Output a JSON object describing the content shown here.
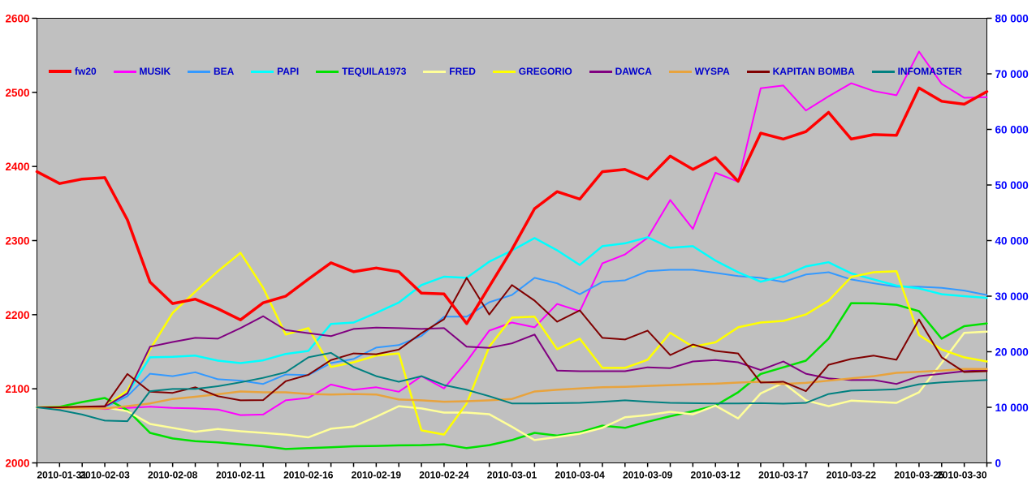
{
  "page": {
    "background": "#FFFFFF"
  },
  "chart_data": {
    "type": "line",
    "title": "",
    "plot_bg": "#C0C0C0",
    "frame_color": "#000000",
    "legend_position": "top-inside",
    "left_axis": {
      "color": "#FF0000",
      "min": 2000,
      "max": 2600,
      "step": 100,
      "labels": [
        "2000",
        "2100",
        "2200",
        "2300",
        "2400",
        "2500",
        "2600"
      ]
    },
    "right_axis": {
      "color": "#0000FF",
      "min": 0,
      "max": 80000,
      "step": 10000,
      "labels": [
        "0",
        "10 000",
        "20 000",
        "30 000",
        "40 000",
        "50 000",
        "60 000",
        "70 000",
        "80 000"
      ]
    },
    "x_axis": {
      "color": "#000000",
      "label_every": 3,
      "shown_labels": [
        "2010-01-31",
        "2010-02-03",
        "2010-02-08",
        "2010-02-11",
        "2010-02-16",
        "2010-02-19",
        "2010-02-24",
        "2010-03-01",
        "2010-03-04",
        "2010-03-09",
        "2010-03-12",
        "2010-03-17",
        "2010-03-22",
        "2010-03-25",
        "2010-03-30"
      ]
    },
    "x": [
      "2010-01-31",
      "2010-02-01",
      "2010-02-02",
      "2010-02-03",
      "2010-02-04",
      "2010-02-05",
      "2010-02-08",
      "2010-02-09",
      "2010-02-10",
      "2010-02-11",
      "2010-02-12",
      "2010-02-15",
      "2010-02-16",
      "2010-02-17",
      "2010-02-18",
      "2010-02-19",
      "2010-02-22",
      "2010-02-23",
      "2010-02-24",
      "2010-02-25",
      "2010-02-26",
      "2010-03-01",
      "2010-03-02",
      "2010-03-03",
      "2010-03-04",
      "2010-03-05",
      "2010-03-08",
      "2010-03-09",
      "2010-03-10",
      "2010-03-11",
      "2010-03-12",
      "2010-03-15",
      "2010-03-16",
      "2010-03-17",
      "2010-03-18",
      "2010-03-19",
      "2010-03-22",
      "2010-03-23",
      "2010-03-24",
      "2010-03-25",
      "2010-03-26",
      "2010-03-29",
      "2010-03-30"
    ],
    "series": [
      {
        "name": "fw20",
        "color": "#FF0000",
        "width": 3.5,
        "axis": "left",
        "values": [
          2393,
          2377,
          2383,
          2385,
          2328,
          2244,
          2215,
          2221,
          2208,
          2193,
          2216,
          2225,
          2248,
          2270,
          2258,
          2263,
          2258,
          2229,
          2228,
          2188,
          2238,
          2288,
          2343,
          2366,
          2356,
          2393,
          2396,
          2383,
          2414,
          2396,
          2412,
          2380,
          2445,
          2437,
          2447,
          2473,
          2437,
          2443,
          2442,
          2506,
          2488,
          2484,
          2501
        ]
      },
      {
        "name": "MUSIK",
        "color": "#FF00FF",
        "width": 2,
        "axis": "right",
        "values": [
          10000,
          9800,
          10000,
          9700,
          9900,
          10100,
          9900,
          9800,
          9600,
          8600,
          8700,
          11250,
          11700,
          14100,
          13150,
          13600,
          12800,
          15600,
          13400,
          18250,
          23800,
          25250,
          24400,
          28600,
          27300,
          35900,
          37500,
          40500,
          47300,
          42100,
          52200,
          50600,
          67400,
          67900,
          63400,
          65950,
          68300,
          66900,
          66150,
          74000,
          68200,
          65700,
          65800
        ]
      },
      {
        "name": "BEA",
        "color": "#3399FF",
        "width": 2,
        "axis": "right",
        "values": [
          10000,
          10000,
          10000,
          10000,
          12000,
          16050,
          15600,
          16300,
          15050,
          14800,
          14200,
          15900,
          15800,
          17950,
          18700,
          20750,
          21200,
          22850,
          26300,
          26300,
          28900,
          30200,
          33300,
          32300,
          30350,
          32550,
          32850,
          34500,
          34750,
          34750,
          34200,
          33600,
          33300,
          32550,
          33900,
          34300,
          33000,
          32300,
          31700,
          31700,
          31500,
          31000,
          30200
        ]
      },
      {
        "name": "PAPI",
        "color": "#00FFFF",
        "width": 2.5,
        "axis": "right",
        "values": [
          10000,
          10000,
          10000,
          10000,
          12500,
          19000,
          19100,
          19300,
          18400,
          17950,
          18450,
          19600,
          20150,
          25000,
          25250,
          27000,
          28850,
          32000,
          33500,
          33300,
          36200,
          38200,
          40450,
          38250,
          35600,
          39000,
          39500,
          40600,
          38700,
          39000,
          36400,
          34300,
          32600,
          33600,
          35350,
          36100,
          34100,
          33000,
          31900,
          31400,
          30350,
          30000,
          29700
        ]
      },
      {
        "name": "TEQUILA1973",
        "color": "#00E100",
        "width": 2.5,
        "axis": "right",
        "values": [
          10000,
          10100,
          10950,
          11680,
          9500,
          5400,
          4400,
          3900,
          3700,
          3350,
          3000,
          2500,
          2650,
          2800,
          3000,
          3050,
          3150,
          3200,
          3350,
          2650,
          3200,
          4100,
          5400,
          4900,
          5500,
          6700,
          6300,
          7400,
          8400,
          9300,
          10300,
          12700,
          16000,
          17200,
          18400,
          22350,
          28750,
          28700,
          28450,
          27300,
          22350,
          24600,
          25100
        ]
      },
      {
        "name": "FRED",
        "color": "#FFFF99",
        "width": 2.5,
        "axis": "right",
        "values": [
          10000,
          10000,
          10000,
          10000,
          9300,
          7000,
          6300,
          5600,
          6100,
          5700,
          5400,
          5100,
          4600,
          6150,
          6550,
          8300,
          10200,
          9800,
          9050,
          9050,
          8760,
          6500,
          4100,
          4650,
          5250,
          6300,
          8200,
          8600,
          9200,
          8750,
          10300,
          8000,
          12500,
          14400,
          11250,
          10200,
          11200,
          11000,
          10800,
          12700,
          18000,
          23400,
          23600
        ]
      },
      {
        "name": "GREGORIO",
        "color": "#FFFF00",
        "width": 2.5,
        "axis": "right",
        "values": [
          10000,
          10000,
          10100,
          10100,
          13000,
          20400,
          27000,
          30800,
          34500,
          37800,
          31500,
          23100,
          24250,
          17250,
          18100,
          19300,
          19700,
          5850,
          5100,
          10700,
          20900,
          26150,
          26300,
          20450,
          22350,
          17100,
          17100,
          18550,
          23400,
          20900,
          21700,
          24400,
          25250,
          25550,
          26700,
          29200,
          33450,
          34300,
          34500,
          23000,
          20400,
          19000,
          18250
        ]
      },
      {
        "name": "DAWCA",
        "color": "#800080",
        "width": 2,
        "axis": "right",
        "values": [
          10000,
          9900,
          10000,
          10100,
          12500,
          20900,
          21750,
          22500,
          22350,
          24250,
          26400,
          23900,
          23350,
          22800,
          24100,
          24350,
          24250,
          24100,
          24250,
          20900,
          20700,
          21500,
          23100,
          16600,
          16500,
          16500,
          16500,
          17200,
          17050,
          18250,
          18500,
          18100,
          16700,
          18250,
          16050,
          15200,
          14900,
          14900,
          14200,
          15600,
          16050,
          16500,
          16700
        ]
      },
      {
        "name": "WYSPA",
        "color": "#E8A33D",
        "width": 2.5,
        "axis": "right",
        "values": [
          10000,
          9900,
          9800,
          9800,
          10200,
          10700,
          11500,
          11900,
          12350,
          12850,
          12700,
          12700,
          12400,
          12300,
          12400,
          12300,
          11400,
          11250,
          11000,
          11100,
          11250,
          11500,
          12850,
          13150,
          13400,
          13600,
          13700,
          13850,
          14000,
          14150,
          14250,
          14450,
          14600,
          14200,
          14400,
          14800,
          15200,
          15600,
          16200,
          16400,
          16600,
          16900,
          16900
        ]
      },
      {
        "name": "KAPITAN BOMBA",
        "color": "#800000",
        "width": 2,
        "axis": "right",
        "values": [
          10000,
          10000,
          10100,
          10200,
          16000,
          12800,
          12600,
          13600,
          12000,
          11250,
          11300,
          14700,
          15850,
          18500,
          19700,
          19550,
          20400,
          23350,
          25850,
          33300,
          26700,
          32000,
          29200,
          25400,
          27450,
          22500,
          22200,
          23800,
          19400,
          21300,
          20150,
          19700,
          14450,
          14600,
          12900,
          17650,
          18700,
          19300,
          18550,
          25800,
          19000,
          16350,
          16500
        ]
      },
      {
        "name": "INFOMASTER",
        "color": "#008080",
        "width": 2,
        "axis": "right",
        "values": [
          10000,
          9500,
          8700,
          7600,
          7500,
          12900,
          13300,
          13300,
          13800,
          14500,
          15300,
          16300,
          19000,
          19800,
          17250,
          15600,
          14600,
          15600,
          14000,
          13150,
          12000,
          10700,
          10700,
          10750,
          10800,
          11000,
          11250,
          11000,
          10800,
          10750,
          10700,
          10700,
          10750,
          10650,
          10800,
          12400,
          13000,
          13100,
          13250,
          14150,
          14500,
          14700,
          14900
        ]
      }
    ]
  }
}
